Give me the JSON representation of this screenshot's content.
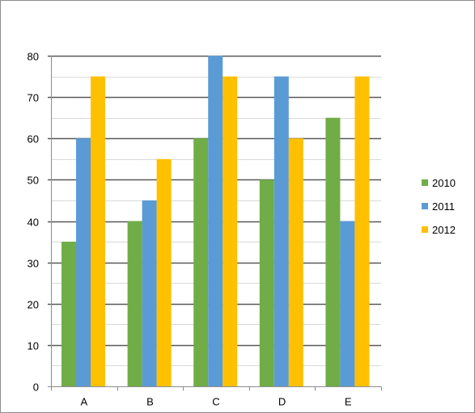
{
  "chart_data": {
    "type": "bar",
    "title": "",
    "xlabel": "",
    "ylabel": "",
    "categories": [
      "A",
      "B",
      "C",
      "D",
      "E"
    ],
    "series": [
      {
        "name": "2010",
        "values": [
          35,
          40,
          60,
          50,
          65
        ],
        "color": "#70ad47"
      },
      {
        "name": "2011",
        "values": [
          60,
          45,
          80,
          75,
          40
        ],
        "color": "#5b9bd5"
      },
      {
        "name": "2012",
        "values": [
          75,
          55,
          75,
          60,
          75
        ],
        "color": "#ffc000"
      }
    ],
    "ylim": [
      0,
      80
    ],
    "yticks": [
      0,
      10,
      20,
      30,
      40,
      50,
      60,
      70,
      80
    ],
    "grid": true,
    "legend_position": "right",
    "colors": {
      "gridline_major": "#595959",
      "gridline_minor": "#d9d9d9",
      "axis": "#8c8c8c",
      "border": "#8c8c8c"
    }
  }
}
